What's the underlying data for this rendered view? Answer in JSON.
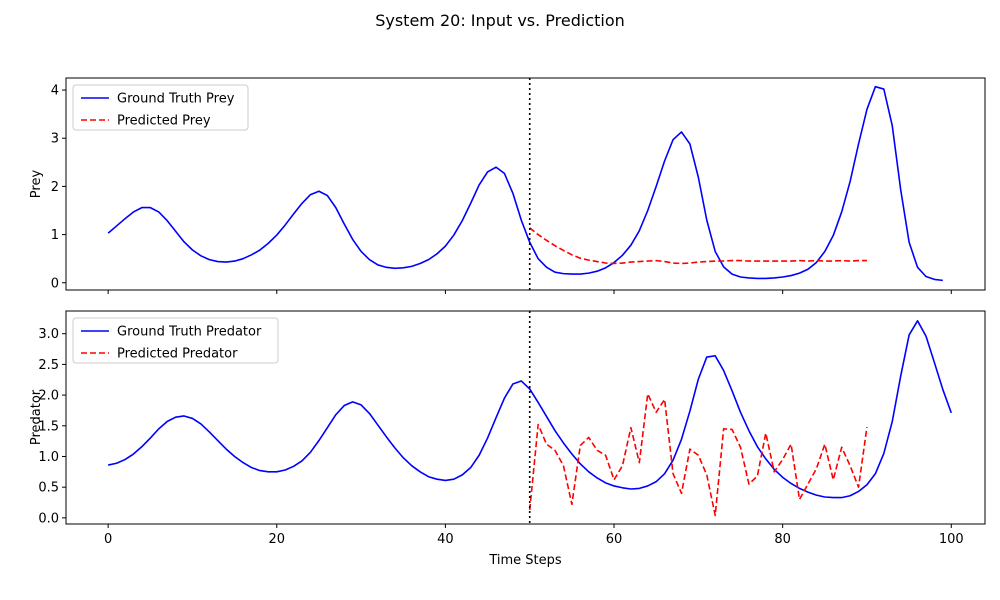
{
  "figure": {
    "suptitle": "System 20: Input vs. Prediction",
    "xlabel": "Time Steps"
  },
  "chart_data": [
    {
      "type": "line",
      "ylabel": "Prey",
      "xlim": [
        -5,
        104
      ],
      "ylim": [
        -0.15,
        4.25
      ],
      "xticks": [
        0,
        20,
        40,
        60,
        80,
        100
      ],
      "yticks": [
        0,
        1,
        2,
        3,
        4
      ],
      "ytick_labels": [
        "0",
        "1",
        "2",
        "3",
        "4"
      ],
      "vline": {
        "x": 50,
        "style": "dotted",
        "color": "#000000"
      },
      "legend": "upper-left",
      "series": [
        {
          "name": "Ground Truth Prey",
          "color": "#0000ff",
          "style": "solid",
          "x_start": 0,
          "values": [
            1.03,
            1.18,
            1.33,
            1.47,
            1.56,
            1.56,
            1.47,
            1.29,
            1.07,
            0.85,
            0.68,
            0.56,
            0.48,
            0.44,
            0.43,
            0.45,
            0.5,
            0.58,
            0.68,
            0.82,
            0.99,
            1.2,
            1.43,
            1.65,
            1.83,
            1.9,
            1.81,
            1.56,
            1.22,
            0.9,
            0.65,
            0.48,
            0.37,
            0.32,
            0.3,
            0.31,
            0.34,
            0.4,
            0.48,
            0.6,
            0.76,
            0.99,
            1.29,
            1.65,
            2.03,
            2.3,
            2.4,
            2.27,
            1.86,
            1.3,
            0.84,
            0.5,
            0.32,
            0.22,
            0.19,
            0.18,
            0.18,
            0.2,
            0.24,
            0.31,
            0.42,
            0.57,
            0.78,
            1.08,
            1.5,
            2.0,
            2.53,
            2.97,
            3.13,
            2.88,
            2.19,
            1.3,
            0.65,
            0.33,
            0.18,
            0.12,
            0.1,
            0.09,
            0.09,
            0.1,
            0.12,
            0.15,
            0.2,
            0.28,
            0.42,
            0.65,
            0.98,
            1.47,
            2.1,
            2.88,
            3.6,
            4.07,
            4.02,
            3.26,
            1.93,
            0.84,
            0.32,
            0.13,
            0.07,
            0.05
          ]
        },
        {
          "name": "Predicted Prey",
          "color": "#ff0000",
          "style": "dashed",
          "x_start": 50,
          "values": [
            1.14,
            1.0,
            0.88,
            0.77,
            0.67,
            0.58,
            0.51,
            0.47,
            0.44,
            0.41,
            0.4,
            0.41,
            0.43,
            0.44,
            0.45,
            0.46,
            0.44,
            0.41,
            0.4,
            0.41,
            0.43,
            0.44,
            0.45,
            0.45,
            0.46,
            0.46,
            0.45,
            0.45,
            0.45,
            0.45,
            0.45,
            0.45,
            0.46,
            0.45,
            0.46,
            0.45,
            0.45,
            0.46,
            0.45,
            0.46,
            0.46
          ]
        }
      ]
    },
    {
      "type": "line",
      "ylabel": "Predator",
      "xlim": [
        -5,
        104
      ],
      "ylim": [
        -0.1,
        3.37
      ],
      "xticks": [
        0,
        20,
        40,
        60,
        80,
        100
      ],
      "xtick_labels": [
        "0",
        "20",
        "40",
        "60",
        "80",
        "100"
      ],
      "yticks": [
        0,
        0.5,
        1.0,
        1.5,
        2.0,
        2.5,
        3.0
      ],
      "ytick_labels": [
        "0.0",
        "0.5",
        "1.0",
        "1.5",
        "2.0",
        "2.5",
        "3.0"
      ],
      "vline": {
        "x": 50,
        "style": "dotted",
        "color": "#000000"
      },
      "legend": "upper-left",
      "series": [
        {
          "name": "Ground Truth Predator",
          "color": "#0000ff",
          "style": "solid",
          "x_start": 0,
          "values": [
            0.86,
            0.89,
            0.95,
            1.04,
            1.16,
            1.3,
            1.45,
            1.57,
            1.64,
            1.66,
            1.62,
            1.53,
            1.4,
            1.26,
            1.12,
            1.0,
            0.9,
            0.82,
            0.77,
            0.75,
            0.75,
            0.78,
            0.84,
            0.93,
            1.07,
            1.26,
            1.47,
            1.68,
            1.83,
            1.89,
            1.84,
            1.7,
            1.51,
            1.32,
            1.14,
            0.98,
            0.85,
            0.75,
            0.67,
            0.63,
            0.61,
            0.63,
            0.7,
            0.82,
            1.02,
            1.3,
            1.63,
            1.95,
            2.18,
            2.23,
            2.1,
            1.88,
            1.65,
            1.42,
            1.22,
            1.04,
            0.88,
            0.75,
            0.65,
            0.57,
            0.52,
            0.49,
            0.47,
            0.48,
            0.52,
            0.59,
            0.72,
            0.94,
            1.28,
            1.74,
            2.26,
            2.62,
            2.64,
            2.4,
            2.07,
            1.72,
            1.42,
            1.16,
            0.96,
            0.79,
            0.66,
            0.56,
            0.48,
            0.42,
            0.37,
            0.34,
            0.33,
            0.33,
            0.36,
            0.43,
            0.54,
            0.72,
            1.05,
            1.57,
            2.31,
            2.98,
            3.21,
            2.96,
            2.53,
            2.09,
            1.71
          ]
        },
        {
          "name": "Predicted Predator",
          "color": "#ff0000",
          "style": "dashed",
          "x_start": 50,
          "values": [
            0.13,
            1.52,
            1.2,
            1.1,
            0.85,
            0.22,
            1.18,
            1.31,
            1.1,
            1.02,
            0.62,
            0.85,
            1.47,
            0.9,
            2.02,
            1.72,
            1.93,
            0.72,
            0.4,
            1.12,
            1.02,
            0.7,
            0.04,
            1.45,
            1.44,
            1.15,
            0.55,
            0.68,
            1.38,
            0.75,
            0.95,
            1.2,
            0.3,
            0.55,
            0.8,
            1.2,
            0.62,
            1.15,
            0.85,
            0.5,
            1.48
          ]
        }
      ]
    }
  ]
}
